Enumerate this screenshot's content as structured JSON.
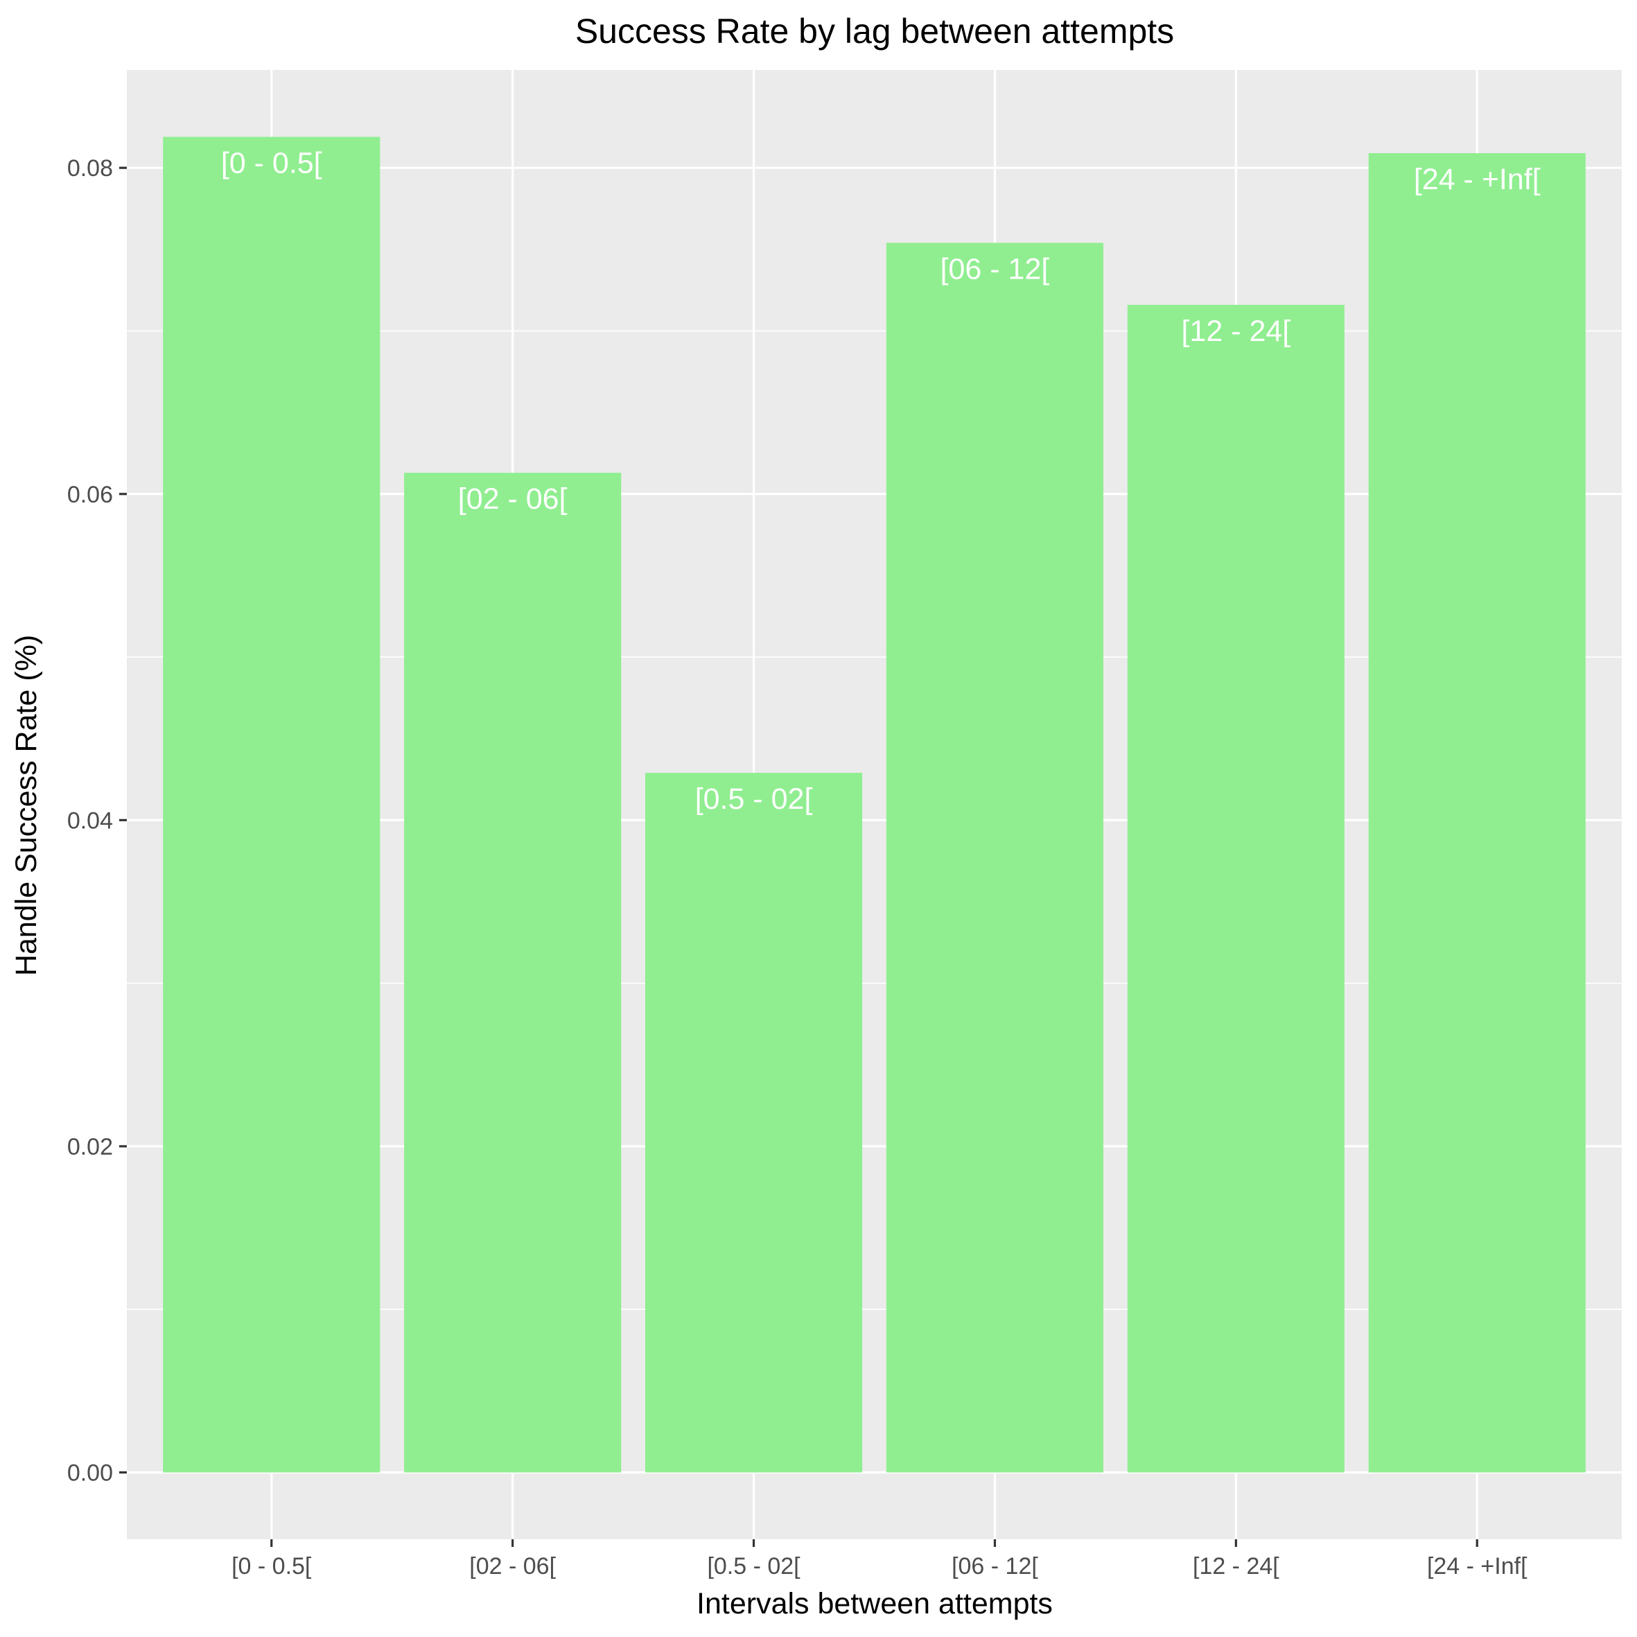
{
  "chart_data": {
    "type": "bar",
    "title": "Success Rate by lag between attempts",
    "xlabel": "Intervals between attempts",
    "ylabel": "Handle Success Rate (%)",
    "categories": [
      "[0 - 0.5[",
      "[02 - 06[",
      "[0.5 - 02[",
      "[06 - 12[",
      "[12 - 24[",
      "[24 - +Inf["
    ],
    "values": [
      0.0819,
      0.0613,
      0.0429,
      0.0754,
      0.0716,
      0.0809
    ],
    "bar_labels": [
      "[0 - 0.5[",
      "[02 - 06[",
      "[0.5 - 02[",
      "[06 - 12[",
      "[12 - 24[",
      "[24 - +Inf["
    ],
    "yticks": [
      0.0,
      0.02,
      0.04,
      0.06,
      0.08
    ],
    "ytick_labels": [
      "0.00",
      "0.02",
      "0.04",
      "0.06",
      "0.08"
    ],
    "ylim": [
      -0.0041,
      0.086
    ],
    "grid": true,
    "legend": "none",
    "colors": {
      "bar": "#90EE90",
      "panel": "#EBEBEB",
      "grid": "#FFFFFF",
      "bar_label": "#FFFFFF"
    }
  }
}
